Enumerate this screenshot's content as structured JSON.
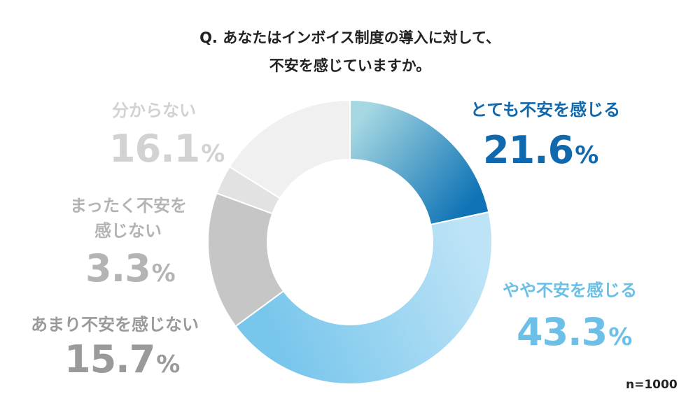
{
  "title_line1": "Q. あなたはインボイス制度の導入に対して、",
  "title_line2": "不安を感じていますか。",
  "n_label": "n=1000",
  "percent_sign": "%",
  "chart_data": {
    "type": "pie",
    "donut": true,
    "categories": [
      "とても不安を感じる",
      "やや不安を感じる",
      "あまり不安を感じない",
      "まったく不安を感じない",
      "分からない"
    ],
    "values": [
      21.6,
      43.3,
      15.7,
      3.3,
      16.1
    ],
    "value_labels": [
      "21.6",
      "43.3",
      "15.7",
      "3.3",
      "16.1"
    ],
    "colors": [
      "#0f73b5",
      "#78c6ec",
      "#c6c6c6",
      "#e2e2e2",
      "#f0f0f0"
    ],
    "gradient_start_colors": [
      "#a6d8e2",
      "#bde3f6",
      "#c6c6c6",
      "#e2e2e2",
      "#f0f0f0"
    ],
    "label_colors": [
      "#1169ad",
      "#6cc0e8",
      "#9a9a9a",
      "#b4b4b4",
      "#d2d2d2"
    ],
    "label_lines": {
      "not_anxious_line1": "まったく不安を",
      "not_anxious_line2": "感じない"
    },
    "start_angle_deg": 0,
    "direction": "clockwise"
  }
}
